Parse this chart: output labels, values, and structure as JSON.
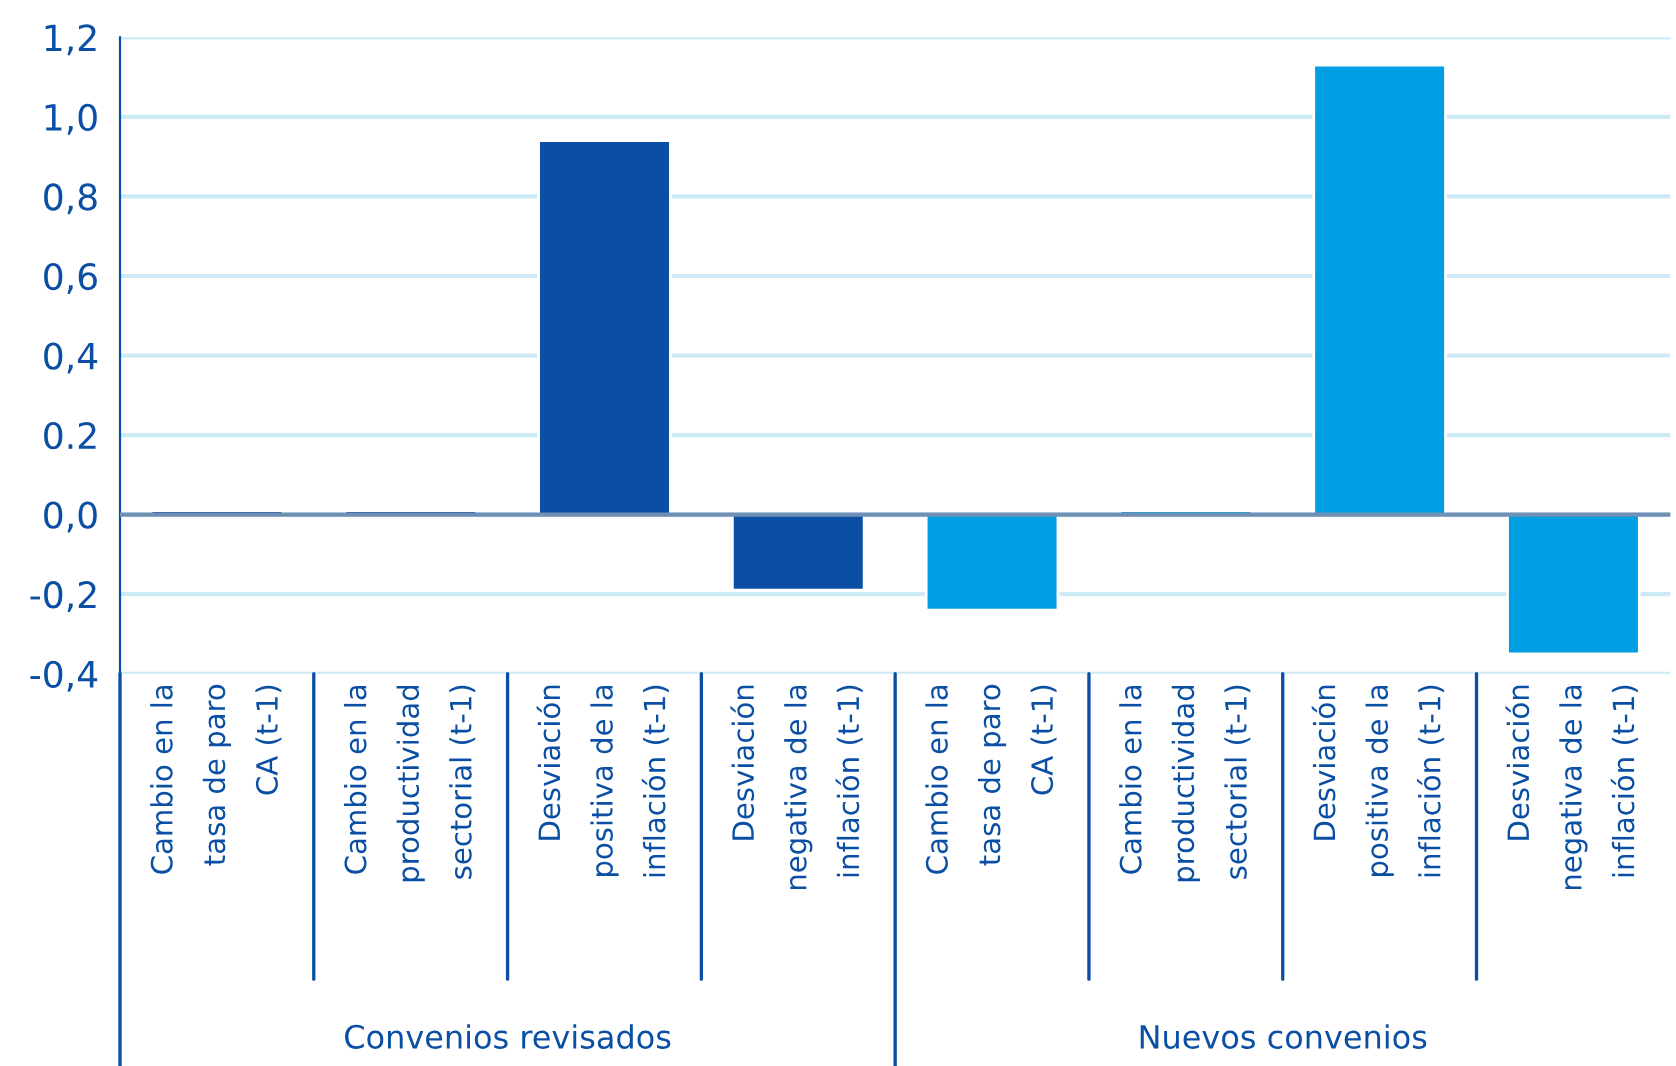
{
  "chart_data": {
    "type": "bar",
    "categories": [
      "Cambio en la\ntasa de paro\nCA (t-1)",
      "Cambio en la\nproductividad\nsectorial (t-1)",
      "Desviación\npositiva de la\ninflación (t-1)",
      "Desviación\nnegativa de la\ninflación (t-1)",
      "Cambio en la\ntasa de paro\nCA (t-1)",
      "Cambio en la\nproductividad\nsectorial (t-1)",
      "Desviación\npositiva de la\ninflación (t-1)",
      "Desviación\nnegativa de la\ninflación (t-1)"
    ],
    "values": [
      0.01,
      0.01,
      0.94,
      -0.19,
      -0.24,
      0.01,
      1.13,
      -0.35
    ],
    "colors": [
      "#0a4fa3",
      "#0a4fa3",
      "#0a4fa3",
      "#0a4fa3",
      "#009fe3",
      "#009fe3",
      "#009fe3",
      "#009fe3"
    ],
    "ylim": [
      -0.4,
      1.2
    ],
    "yticks": [
      {
        "value": -0.4,
        "label": "-0,4"
      },
      {
        "value": -0.2,
        "label": "-0,2"
      },
      {
        "value": 0,
        "label": "0,0"
      },
      {
        "value": 0.2,
        "label": "0.2"
      },
      {
        "value": 0.4,
        "label": "0,4"
      },
      {
        "value": 0.6,
        "label": "0,6"
      },
      {
        "value": 0.8,
        "label": "0,8"
      },
      {
        "value": 1.0,
        "label": "1,0"
      },
      {
        "value": 1.2,
        "label": "1,2"
      }
    ],
    "grid": "y",
    "ref_lines": [
      {
        "axis": "y",
        "value": 0,
        "color": "#6f8fb5"
      }
    ],
    "annotations": [
      "Convenios revisados",
      "Nuevos convenios"
    ]
  }
}
